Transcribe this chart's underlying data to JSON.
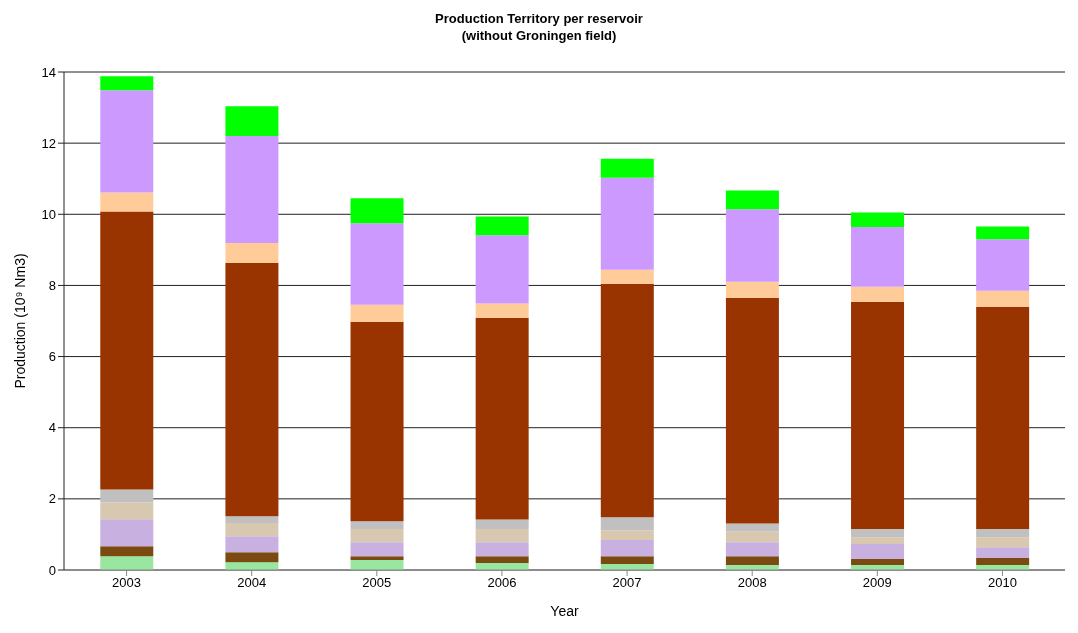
{
  "chart_data": {
    "type": "bar",
    "title": "Production Territory per reservoir",
    "subtitle": "(without Groningen field)",
    "xlabel": "Year",
    "ylabel": "Production (10⁹ Nm3)",
    "categories": [
      "2003",
      "2004",
      "2005",
      "2006",
      "2007",
      "2008",
      "2009",
      "2010"
    ],
    "stacked": true,
    "series": [
      {
        "color": "#99e6a0",
        "values": [
          0.39,
          0.22,
          0.28,
          0.2,
          0.17,
          0.14,
          0.14,
          0.14
        ]
      },
      {
        "color": "#7a4a10",
        "values": [
          0.28,
          0.28,
          0.11,
          0.19,
          0.22,
          0.25,
          0.17,
          0.2
        ]
      },
      {
        "color": "#c8b0e0",
        "values": [
          0.76,
          0.45,
          0.39,
          0.39,
          0.45,
          0.39,
          0.42,
          0.3
        ]
      },
      {
        "color": "#d8c8b0",
        "values": [
          0.47,
          0.37,
          0.37,
          0.37,
          0.28,
          0.31,
          0.19,
          0.28
        ]
      },
      {
        "color": "#c0c0c0",
        "values": [
          0.36,
          0.19,
          0.22,
          0.27,
          0.36,
          0.22,
          0.23,
          0.23
        ]
      },
      {
        "color": "#993300",
        "values": [
          7.82,
          7.12,
          5.61,
          5.67,
          6.57,
          6.34,
          6.39,
          6.25
        ]
      },
      {
        "color": "#ffcc99",
        "values": [
          0.53,
          0.56,
          0.48,
          0.4,
          0.39,
          0.45,
          0.42,
          0.45
        ]
      },
      {
        "color": "#cc99ff",
        "values": [
          2.88,
          3.01,
          2.29,
          1.92,
          2.59,
          2.04,
          1.68,
          1.45
        ]
      },
      {
        "color": "#00ff00",
        "values": [
          0.39,
          0.84,
          0.7,
          0.53,
          0.53,
          0.53,
          0.41,
          0.36
        ]
      }
    ],
    "ylim": [
      0,
      14
    ],
    "yticks": [
      0,
      2,
      4,
      6,
      8,
      10,
      12,
      14
    ],
    "grid": "y",
    "legend": false
  }
}
